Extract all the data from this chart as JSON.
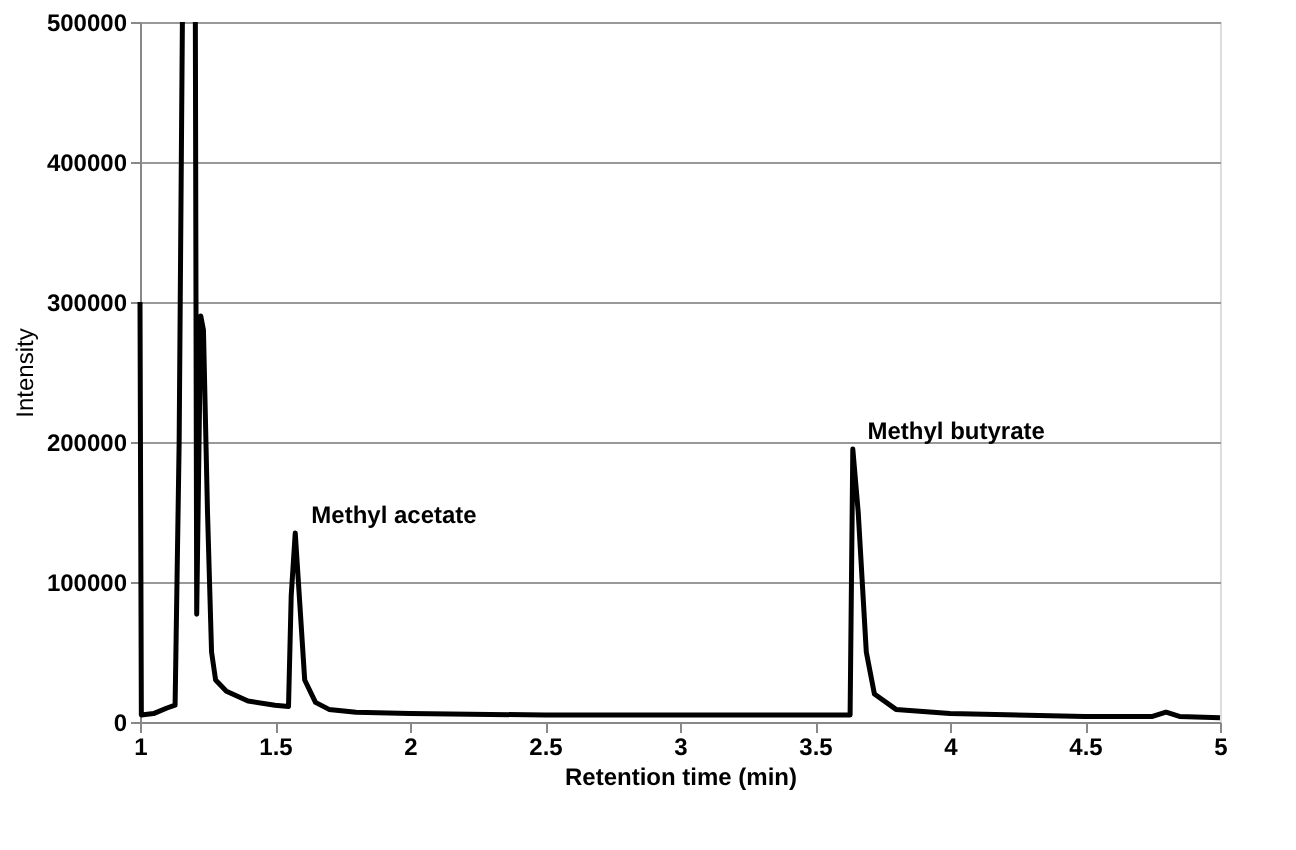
{
  "chart_data": {
    "type": "line",
    "xlabel": "Retention time (min)",
    "ylabel": "Intensity",
    "x": [
      1.0,
      1.005,
      1.05,
      1.1,
      1.13,
      1.145,
      1.157,
      1.18,
      1.205,
      1.21,
      1.225,
      1.235,
      1.25,
      1.265,
      1.28,
      1.32,
      1.4,
      1.5,
      1.55,
      1.56,
      1.575,
      1.59,
      1.61,
      1.65,
      1.7,
      1.8,
      2.0,
      2.5,
      3.0,
      3.5,
      3.63,
      3.64,
      3.66,
      3.69,
      3.72,
      3.8,
      4.0,
      4.5,
      4.75,
      4.8,
      4.85,
      5.0
    ],
    "series": [
      {
        "color": "#000000",
        "values": [
          300000,
          5000,
          6000,
          10000,
          12000,
          200000,
          500000,
          null,
          500000,
          77000,
          290000,
          280000,
          150000,
          50000,
          30000,
          22000,
          15000,
          12000,
          11000,
          90000,
          135000,
          90000,
          30000,
          14000,
          9000,
          7000,
          6000,
          5000,
          5000,
          5000,
          5000,
          195000,
          150000,
          50000,
          20000,
          9000,
          6000,
          4000,
          4000,
          7000,
          4000,
          3000
        ]
      }
    ],
    "xlim": [
      1,
      5
    ],
    "xticks": [
      1,
      1.5,
      2,
      2.5,
      3,
      3.5,
      4,
      4.5,
      5
    ],
    "ylim": [
      0,
      500000
    ],
    "yticks": [
      0,
      100000,
      200000,
      300000,
      400000,
      500000
    ],
    "grid": "y",
    "marker": "none",
    "line_style": "solid",
    "annotations": [
      {
        "text": "Methyl acetate",
        "x": 1.59,
        "y": 135000
      },
      {
        "text": "Methyl butyrate",
        "x": 3.65,
        "y": 195000
      }
    ]
  }
}
